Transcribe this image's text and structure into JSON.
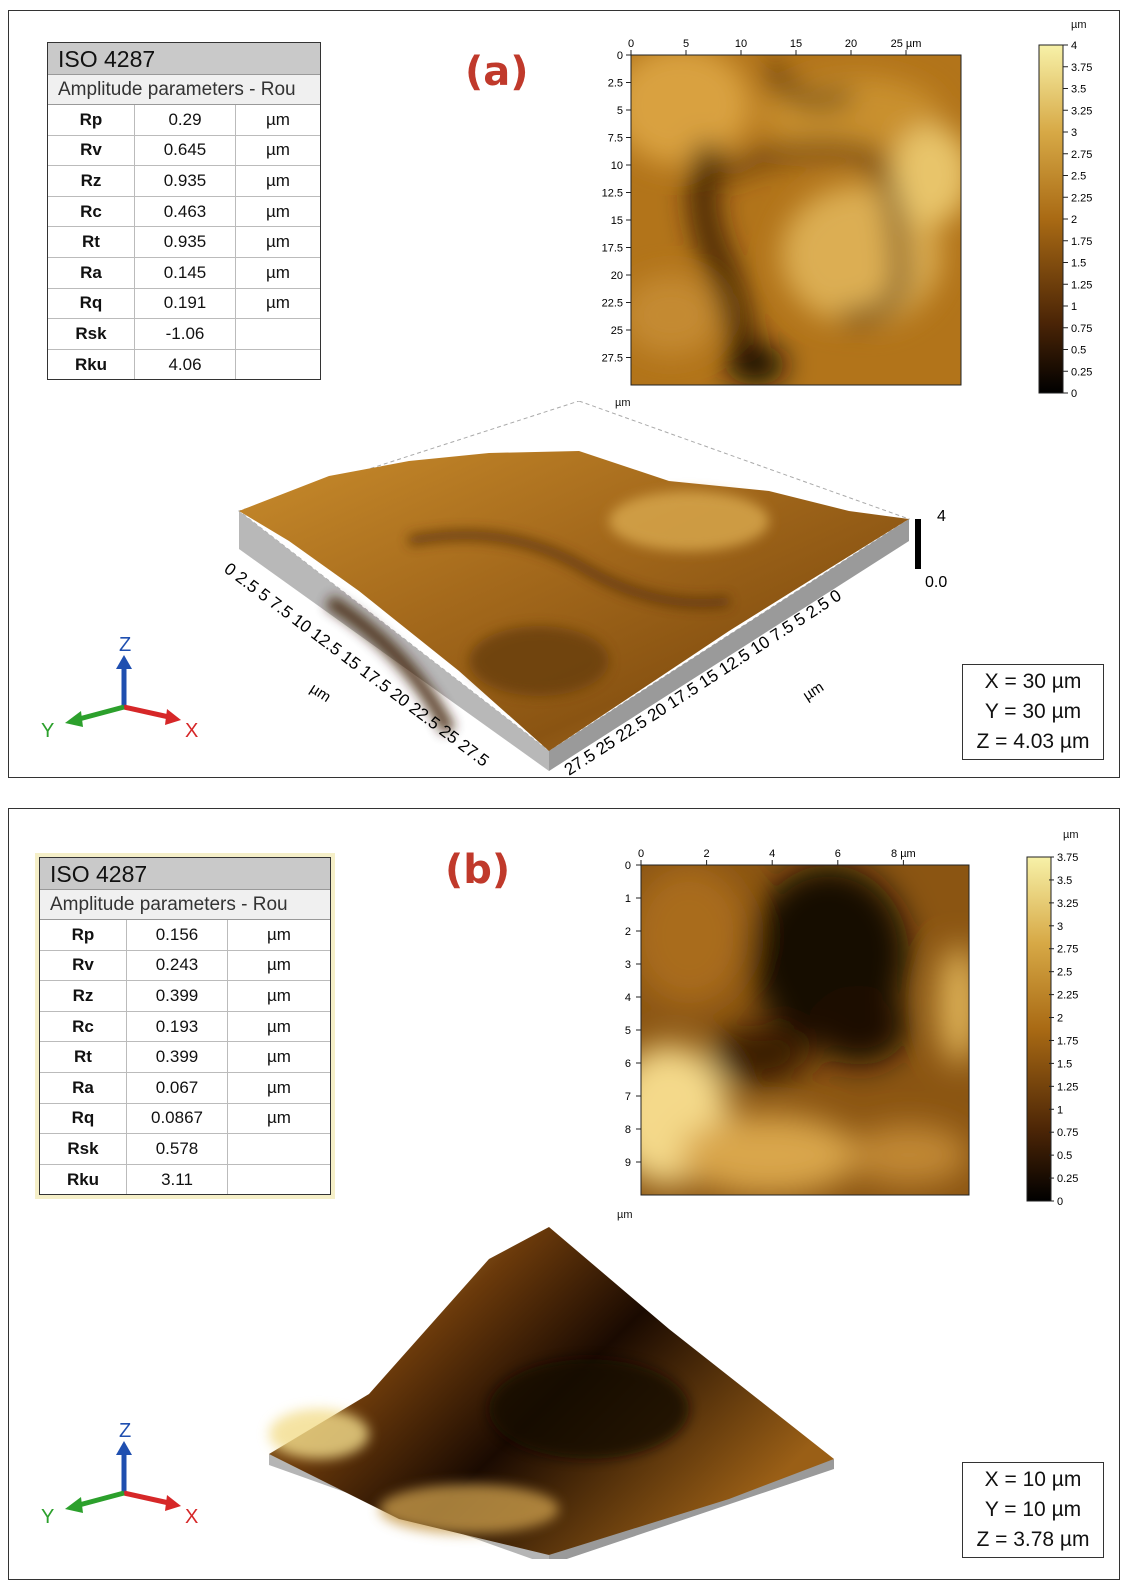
{
  "panels": {
    "a": {
      "label": "(a)",
      "table": {
        "title": "ISO 4287",
        "subtitle": "Amplitude parameters - Rou",
        "rows": [
          {
            "name": "Rp",
            "value": "0.29",
            "unit": "µm"
          },
          {
            "name": "Rv",
            "value": "0.645",
            "unit": "µm"
          },
          {
            "name": "Rz",
            "value": "0.935",
            "unit": "µm"
          },
          {
            "name": "Rc",
            "value": "0.463",
            "unit": "µm"
          },
          {
            "name": "Rt",
            "value": "0.935",
            "unit": "µm"
          },
          {
            "name": "Ra",
            "value": "0.145",
            "unit": "µm"
          },
          {
            "name": "Rq",
            "value": "0.191",
            "unit": "µm"
          },
          {
            "name": "Rsk",
            "value": "-1.06",
            "unit": ""
          },
          {
            "name": "Rku",
            "value": "4.06",
            "unit": ""
          }
        ]
      },
      "map_x_ticks": [
        "0",
        "5",
        "10",
        "15",
        "20",
        "25 µm"
      ],
      "map_y_ticks": [
        "0",
        "2.5",
        "5",
        "7.5",
        "10",
        "12.5",
        "15",
        "17.5",
        "20",
        "22.5",
        "25",
        "27.5"
      ],
      "map_y_unit": "µm",
      "colorbar_unit": "µm",
      "colorbar_ticks": [
        "4",
        "3.75",
        "3.5",
        "3.25",
        "3",
        "2.75",
        "2.5",
        "2.25",
        "2",
        "1.75",
        "1.5",
        "1.25",
        "1",
        "0.75",
        "0.5",
        "0.25",
        "0"
      ],
      "axis3d_left": "0 2.5 5 7.5 10 12.5 15 17.5 20 22.5 25 27.5",
      "axis3d_right": "27.5 25 22.5 20 17.5 15 12.5 10 7.5 5 2.5 0",
      "axis3d_unit_left": "µm",
      "axis3d_unit_right": "µm",
      "z_max_label": "4",
      "z_zero_label": "0.0",
      "dims": {
        "x": "X = 30 µm",
        "y": "Y = 30 µm",
        "z": "Z = 4.03 µm"
      }
    },
    "b": {
      "label": "(b)",
      "table": {
        "title": "ISO 4287",
        "subtitle": "Amplitude parameters - Rou",
        "rows": [
          {
            "name": "Rp",
            "value": "0.156",
            "unit": "µm"
          },
          {
            "name": "Rv",
            "value": "0.243",
            "unit": "µm"
          },
          {
            "name": "Rz",
            "value": "0.399",
            "unit": "µm"
          },
          {
            "name": "Rc",
            "value": "0.193",
            "unit": "µm"
          },
          {
            "name": "Rt",
            "value": "0.399",
            "unit": "µm"
          },
          {
            "name": "Ra",
            "value": "0.067",
            "unit": "µm"
          },
          {
            "name": "Rq",
            "value": "0.0867",
            "unit": "µm"
          },
          {
            "name": "Rsk",
            "value": "0.578",
            "unit": ""
          },
          {
            "name": "Rku",
            "value": "3.11",
            "unit": ""
          }
        ]
      },
      "map_x_ticks": [
        "0",
        "2",
        "4",
        "6",
        "8 µm"
      ],
      "map_y_ticks": [
        "0",
        "1",
        "2",
        "3",
        "4",
        "5",
        "6",
        "7",
        "8",
        "9"
      ],
      "map_y_unit": "µm",
      "colorbar_unit": "µm",
      "colorbar_ticks": [
        "3.75",
        "3.5",
        "3.25",
        "3",
        "2.75",
        "2.5",
        "2.25",
        "2",
        "1.75",
        "1.5",
        "1.25",
        "1",
        "0.75",
        "0.5",
        "0.25",
        "0"
      ],
      "dims": {
        "x": "X = 10 µm",
        "y": "Y = 10 µm",
        "z": "Z = 3.78 µm"
      }
    }
  },
  "axes_gizmo": {
    "z": "Z",
    "y": "Y",
    "x": "X"
  },
  "colors": {
    "label_red": "#c0392b",
    "height_low": "#120800",
    "height_mid": "#a0620f",
    "height_high": "#f5ec9a",
    "axis_x": "#d62728",
    "axis_y": "#2ca02c",
    "axis_z": "#1f4fb0"
  }
}
